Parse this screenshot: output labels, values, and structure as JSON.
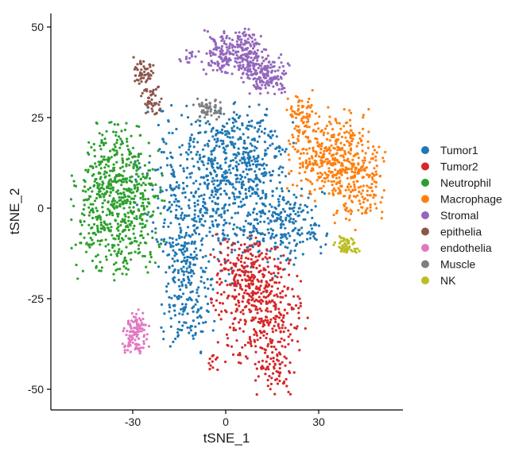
{
  "chart_data": {
    "type": "scatter",
    "xlabel": "tSNE_1",
    "ylabel": "tSNE_2",
    "xlim": [
      -55,
      57
    ],
    "ylim": [
      -55,
      54
    ],
    "x_ticks": [
      -30,
      0,
      30
    ],
    "y_ticks": [
      -50,
      -25,
      0,
      25,
      50
    ],
    "grid": false,
    "legend_position": "right",
    "series": [
      {
        "name": "Tumor1",
        "color": "#1f77b4",
        "clusters": [
          {
            "cx": -3,
            "cy": 5,
            "sx": 12,
            "sy": 12,
            "n": 700
          },
          {
            "cx": 8,
            "cy": 15,
            "sx": 6,
            "sy": 6,
            "n": 180
          },
          {
            "cx": 20,
            "cy": -5,
            "sx": 6,
            "sy": 5,
            "n": 180
          },
          {
            "cx": -12,
            "cy": -25,
            "sx": 4,
            "sy": 7,
            "n": 150
          },
          {
            "cx": -14,
            "cy": -12,
            "sx": 3,
            "sy": 5,
            "n": 60
          }
        ]
      },
      {
        "name": "Tumor2",
        "color": "#d62728",
        "clusters": [
          {
            "cx": 7,
            "cy": -18,
            "sx": 6,
            "sy": 5,
            "n": 200
          },
          {
            "cx": 12,
            "cy": -30,
            "sx": 7,
            "sy": 8,
            "n": 320
          },
          {
            "cx": 16,
            "cy": -45,
            "sx": 3,
            "sy": 4,
            "n": 50
          },
          {
            "cx": -3,
            "cy": -43,
            "sx": 1.5,
            "sy": 1.5,
            "n": 12
          }
        ]
      },
      {
        "name": "Neutrophil",
        "color": "#2ca02c",
        "clusters": [
          {
            "cx": -35,
            "cy": 2,
            "sx": 7,
            "sy": 10,
            "n": 650
          }
        ]
      },
      {
        "name": "Macrophage",
        "color": "#ff7f0e",
        "clusters": [
          {
            "cx": 33,
            "cy": 15,
            "sx": 6,
            "sy": 6,
            "n": 350
          },
          {
            "cx": 43,
            "cy": 7,
            "sx": 4,
            "sy": 6,
            "n": 180
          },
          {
            "cx": 24,
            "cy": 26,
            "sx": 2,
            "sy": 3,
            "n": 60
          }
        ]
      },
      {
        "name": "Stromal",
        "color": "#9467bd",
        "clusters": [
          {
            "cx": 3,
            "cy": 43,
            "sx": 5,
            "sy": 3,
            "n": 250
          },
          {
            "cx": 13,
            "cy": 37,
            "sx": 4,
            "sy": 2.5,
            "n": 180
          },
          {
            "cx": -12,
            "cy": 42,
            "sx": 1.5,
            "sy": 1,
            "n": 15
          }
        ]
      },
      {
        "name": "epithelia",
        "color": "#8c564b",
        "clusters": [
          {
            "cx": -27,
            "cy": 38,
            "sx": 1.8,
            "sy": 2,
            "n": 50
          },
          {
            "cx": -24,
            "cy": 30,
            "sx": 2,
            "sy": 2,
            "n": 50
          }
        ]
      },
      {
        "name": "endothelia",
        "color": "#e377c2",
        "clusters": [
          {
            "cx": -29,
            "cy": -34,
            "sx": 2,
            "sy": 3,
            "n": 110
          }
        ]
      },
      {
        "name": "Muscle",
        "color": "#7f7f7f",
        "clusters": [
          {
            "cx": -5,
            "cy": 27,
            "sx": 2.5,
            "sy": 1.5,
            "n": 60
          }
        ]
      },
      {
        "name": "NK",
        "color": "#bcbd22",
        "clusters": [
          {
            "cx": 39,
            "cy": -10,
            "sx": 2.2,
            "sy": 1.2,
            "n": 55
          }
        ]
      }
    ]
  }
}
